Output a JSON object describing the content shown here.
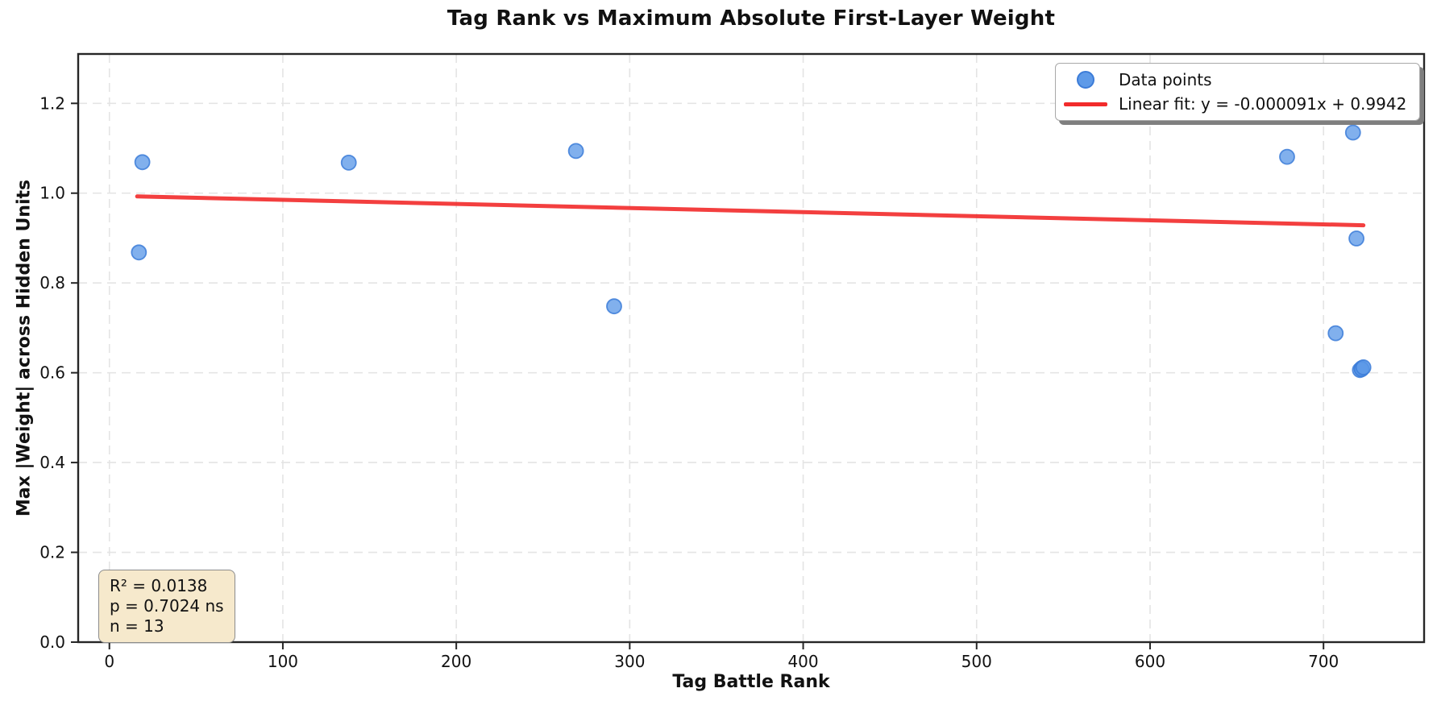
{
  "chart_data": {
    "type": "scatter",
    "title": "Tag Rank vs Maximum Absolute First-Layer Weight",
    "xlabel": "Tag Battle Rank",
    "ylabel": "Max |Weight| across Hidden Units",
    "xlim": [
      -18,
      758
    ],
    "ylim": [
      0,
      1.31
    ],
    "x_ticks": [
      0,
      100,
      200,
      300,
      400,
      500,
      600,
      700
    ],
    "x_tick_labels": [
      "0",
      "100",
      "200",
      "300",
      "400",
      "500",
      "600",
      "700"
    ],
    "y_ticks": [
      0.0,
      0.2,
      0.4,
      0.6,
      0.8,
      1.0,
      1.2
    ],
    "y_tick_labels": [
      "0.0",
      "0.2",
      "0.4",
      "0.6",
      "0.8",
      "1.0",
      "1.2"
    ],
    "grid": true,
    "legend_position": "upper right",
    "series": [
      {
        "name": "Data points",
        "points": [
          [
            17,
            0.868
          ],
          [
            19,
            1.069
          ],
          [
            138,
            1.068
          ],
          [
            269,
            1.094
          ],
          [
            291,
            0.748
          ],
          [
            679,
            1.081
          ],
          [
            707,
            0.688
          ],
          [
            717,
            1.135
          ],
          [
            719,
            0.899
          ],
          [
            721,
            0.606
          ],
          [
            722,
            0.61
          ],
          [
            722,
            0.608
          ],
          [
            723,
            0.612
          ]
        ]
      }
    ],
    "fit_line": {
      "name": "Linear fit",
      "slope": -9.1e-05,
      "intercept": 0.9942,
      "x_start": 16,
      "x_end": 723
    },
    "colors": {
      "marker_fill": "#5e9ae8",
      "marker_edge": "#3c7cd8",
      "fit_line": "#f22b2b",
      "grid": "#e4e4e4",
      "spine": "#262626",
      "tick_label": "#111111",
      "annotation_bg": "#f6e9cc",
      "annotation_border": "#8c8c8c"
    }
  },
  "legend": {
    "items": [
      {
        "label": "Data points",
        "marker": "scatter-dot"
      },
      {
        "label": "Linear fit: y = -0.000091x + 0.9942",
        "marker": "red-line"
      }
    ]
  },
  "annotation": {
    "lines": [
      "R² = 0.0138",
      "p = 0.7024 ns",
      "n = 13"
    ]
  }
}
